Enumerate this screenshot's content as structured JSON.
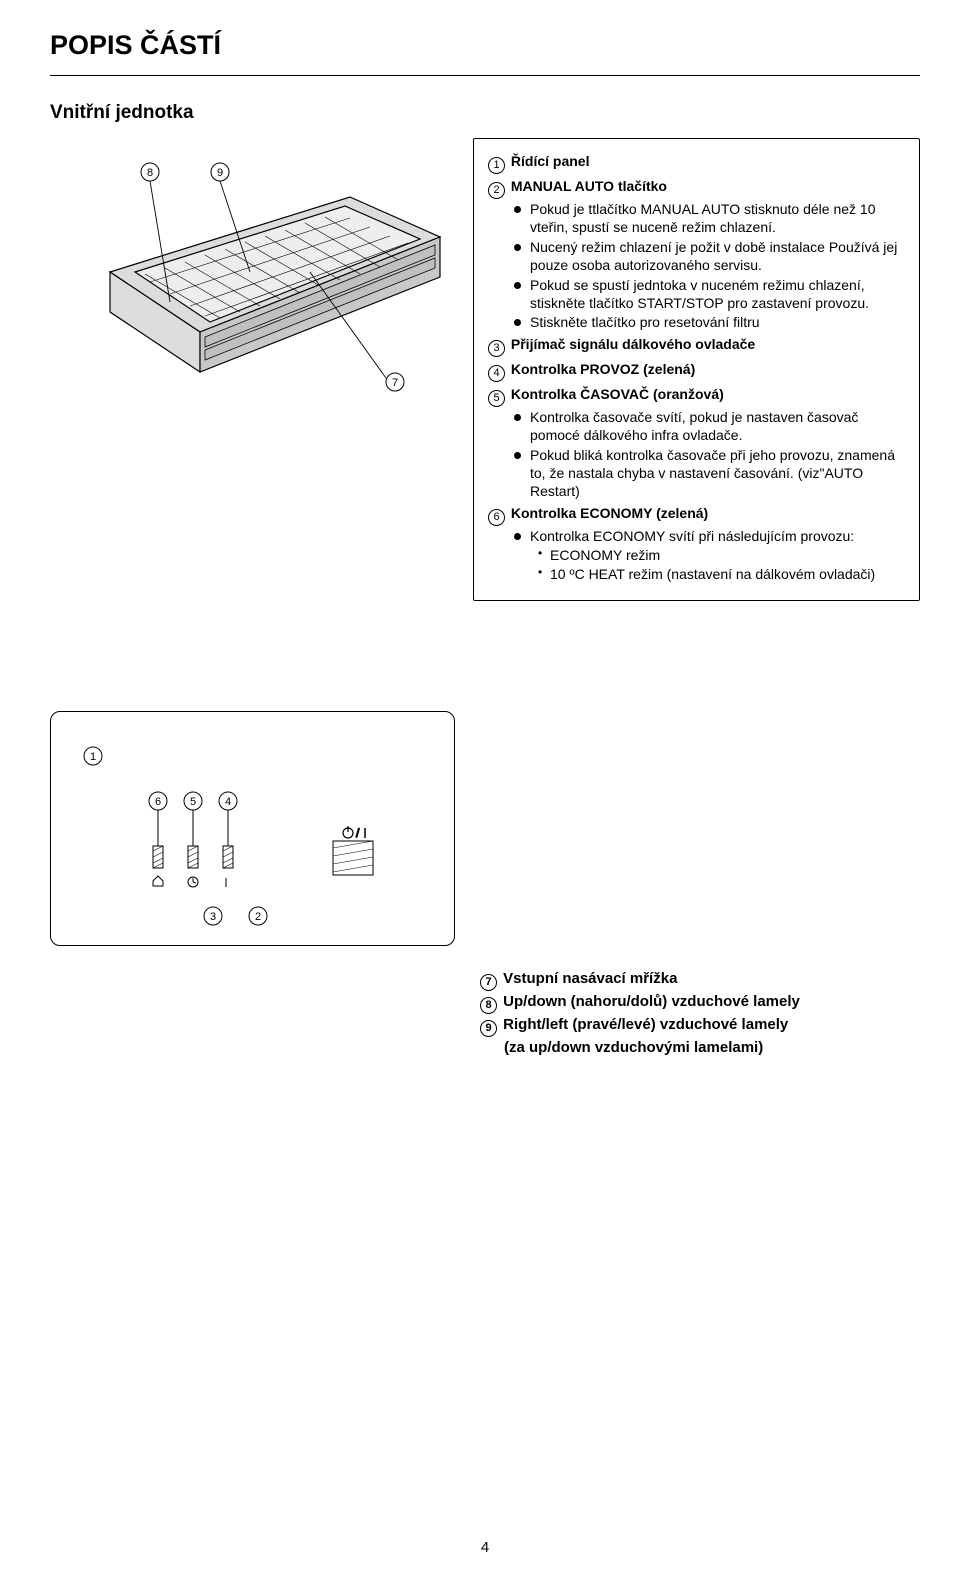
{
  "title": "POPIS ČÁSTÍ",
  "subtitle": "Vnitřní jednotka",
  "page_number": "4",
  "colors": {
    "text": "#000000",
    "bg": "#ffffff",
    "unit_fill": "#dcdcdc",
    "unit_stroke": "#000000"
  },
  "callouts": [
    "1",
    "2",
    "3",
    "4",
    "5",
    "6",
    "7",
    "8",
    "9"
  ],
  "items": [
    {
      "num": "1",
      "title": "Řídící panel",
      "bullets": []
    },
    {
      "num": "2",
      "title": "MANUAL AUTO tlačítko",
      "bullets": [
        "Pokud je ttlačítko MANUAL AUTO stisknuto déle než 10 vteřin, spustí se nuceně režim chlazení.",
        "Nucený režim chlazení je požit v době instalace Používá jej pouze osoba autorizovaného servisu.",
        "Pokud se spustí jedntoka v nuceném režimu chlazení, stiskněte tlačítko START/STOP pro zastavení provozu.",
        "Stiskněte tlačítko pro resetování filtru"
      ]
    },
    {
      "num": "3",
      "title": "Přijímač signálu dálkového ovladače",
      "bullets": []
    },
    {
      "num": "4",
      "title": "Kontrolka PROVOZ (zelená)",
      "bullets": []
    },
    {
      "num": "5",
      "title": "Kontrolka ČASOVAČ (oranžová)",
      "bullets": [
        "Kontrolka časovače svítí, pokud je nastaven časovač pomocé dálkového infra ovladače.",
        "Pokud bliká kontrolka časovače při jeho provozu, znamená to, že nastala chyba v nastavení časování. (viz\"AUTO Restart)"
      ]
    },
    {
      "num": "6",
      "title": "Kontrolka ECONOMY (zelená)",
      "bullets": [
        "Kontrolka ECONOMY svítí při následujícím provozu:"
      ],
      "subbullets": [
        "ECONOMY režim",
        "10 ºC HEAT režim (nastavení na dálkovém ovladači)"
      ]
    }
  ],
  "lower": [
    {
      "num": "7",
      "text": "Vstupní nasávací mřížka"
    },
    {
      "num": "8",
      "text": "Up/down (nahoru/dolů) vzduchové lamely"
    },
    {
      "num": "9",
      "text": "Right/left (pravé/levé) vzduchové lamely"
    }
  ],
  "lower_extra": "(za up/down vzduchovými lamelami)"
}
